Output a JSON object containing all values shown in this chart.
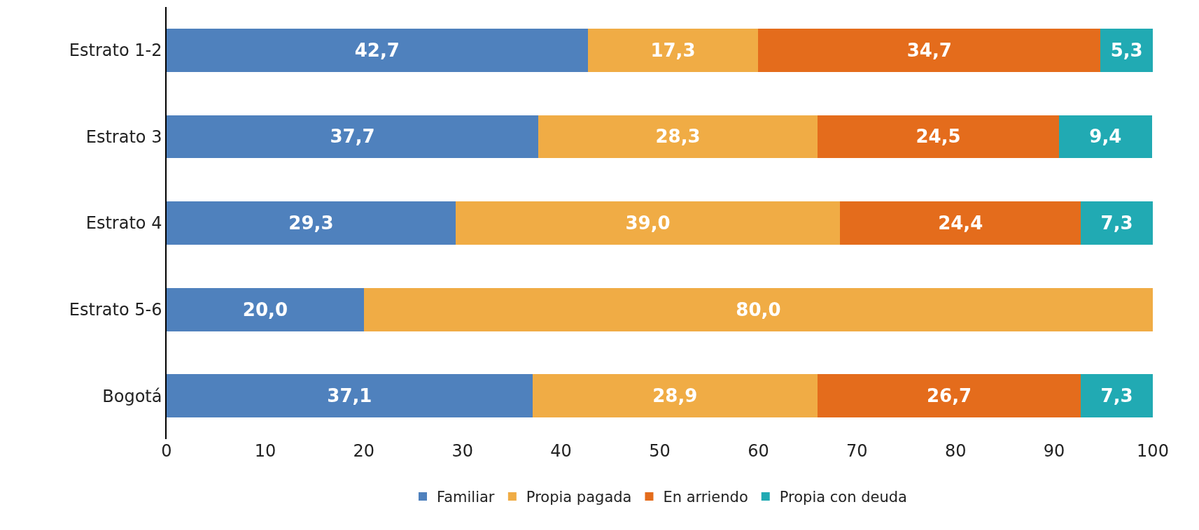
{
  "chart_data": {
    "type": "bar",
    "orientation": "horizontal",
    "stacked": true,
    "categories": [
      "Estrato 1-2",
      "Estrato 3",
      "Estrato 4",
      "Estrato 5-6",
      "Bogotá"
    ],
    "series": [
      {
        "name": "Familiar",
        "color": "#4f81bd",
        "values": [
          42.7,
          37.7,
          29.3,
          20.0,
          37.1
        ],
        "value_labels": [
          "42,7",
          "37,7",
          "29,3",
          "20,0",
          "37,1"
        ]
      },
      {
        "name": "Propia pagada",
        "color": "#f0ac45",
        "values": [
          17.3,
          28.3,
          39.0,
          80.0,
          28.9
        ],
        "value_labels": [
          "17,3",
          "28,3",
          "39,0",
          "80,0",
          "28,9"
        ]
      },
      {
        "name": "En arriendo",
        "color": "#e46c1c",
        "values": [
          34.7,
          24.5,
          24.4,
          null,
          26.7
        ],
        "value_labels": [
          "34,7",
          "24,5",
          "24,4",
          null,
          "26,7"
        ]
      },
      {
        "name": "Propia con deuda",
        "color": "#21aab3",
        "values": [
          5.3,
          9.4,
          7.3,
          null,
          7.3
        ],
        "value_labels": [
          "5,3",
          "9,4",
          "7,3",
          null,
          "7,3"
        ]
      }
    ],
    "xlim": [
      0,
      100
    ],
    "xticks": [
      0,
      10,
      20,
      30,
      40,
      50,
      60,
      70,
      80,
      90,
      100
    ],
    "legend": "bottom"
  }
}
